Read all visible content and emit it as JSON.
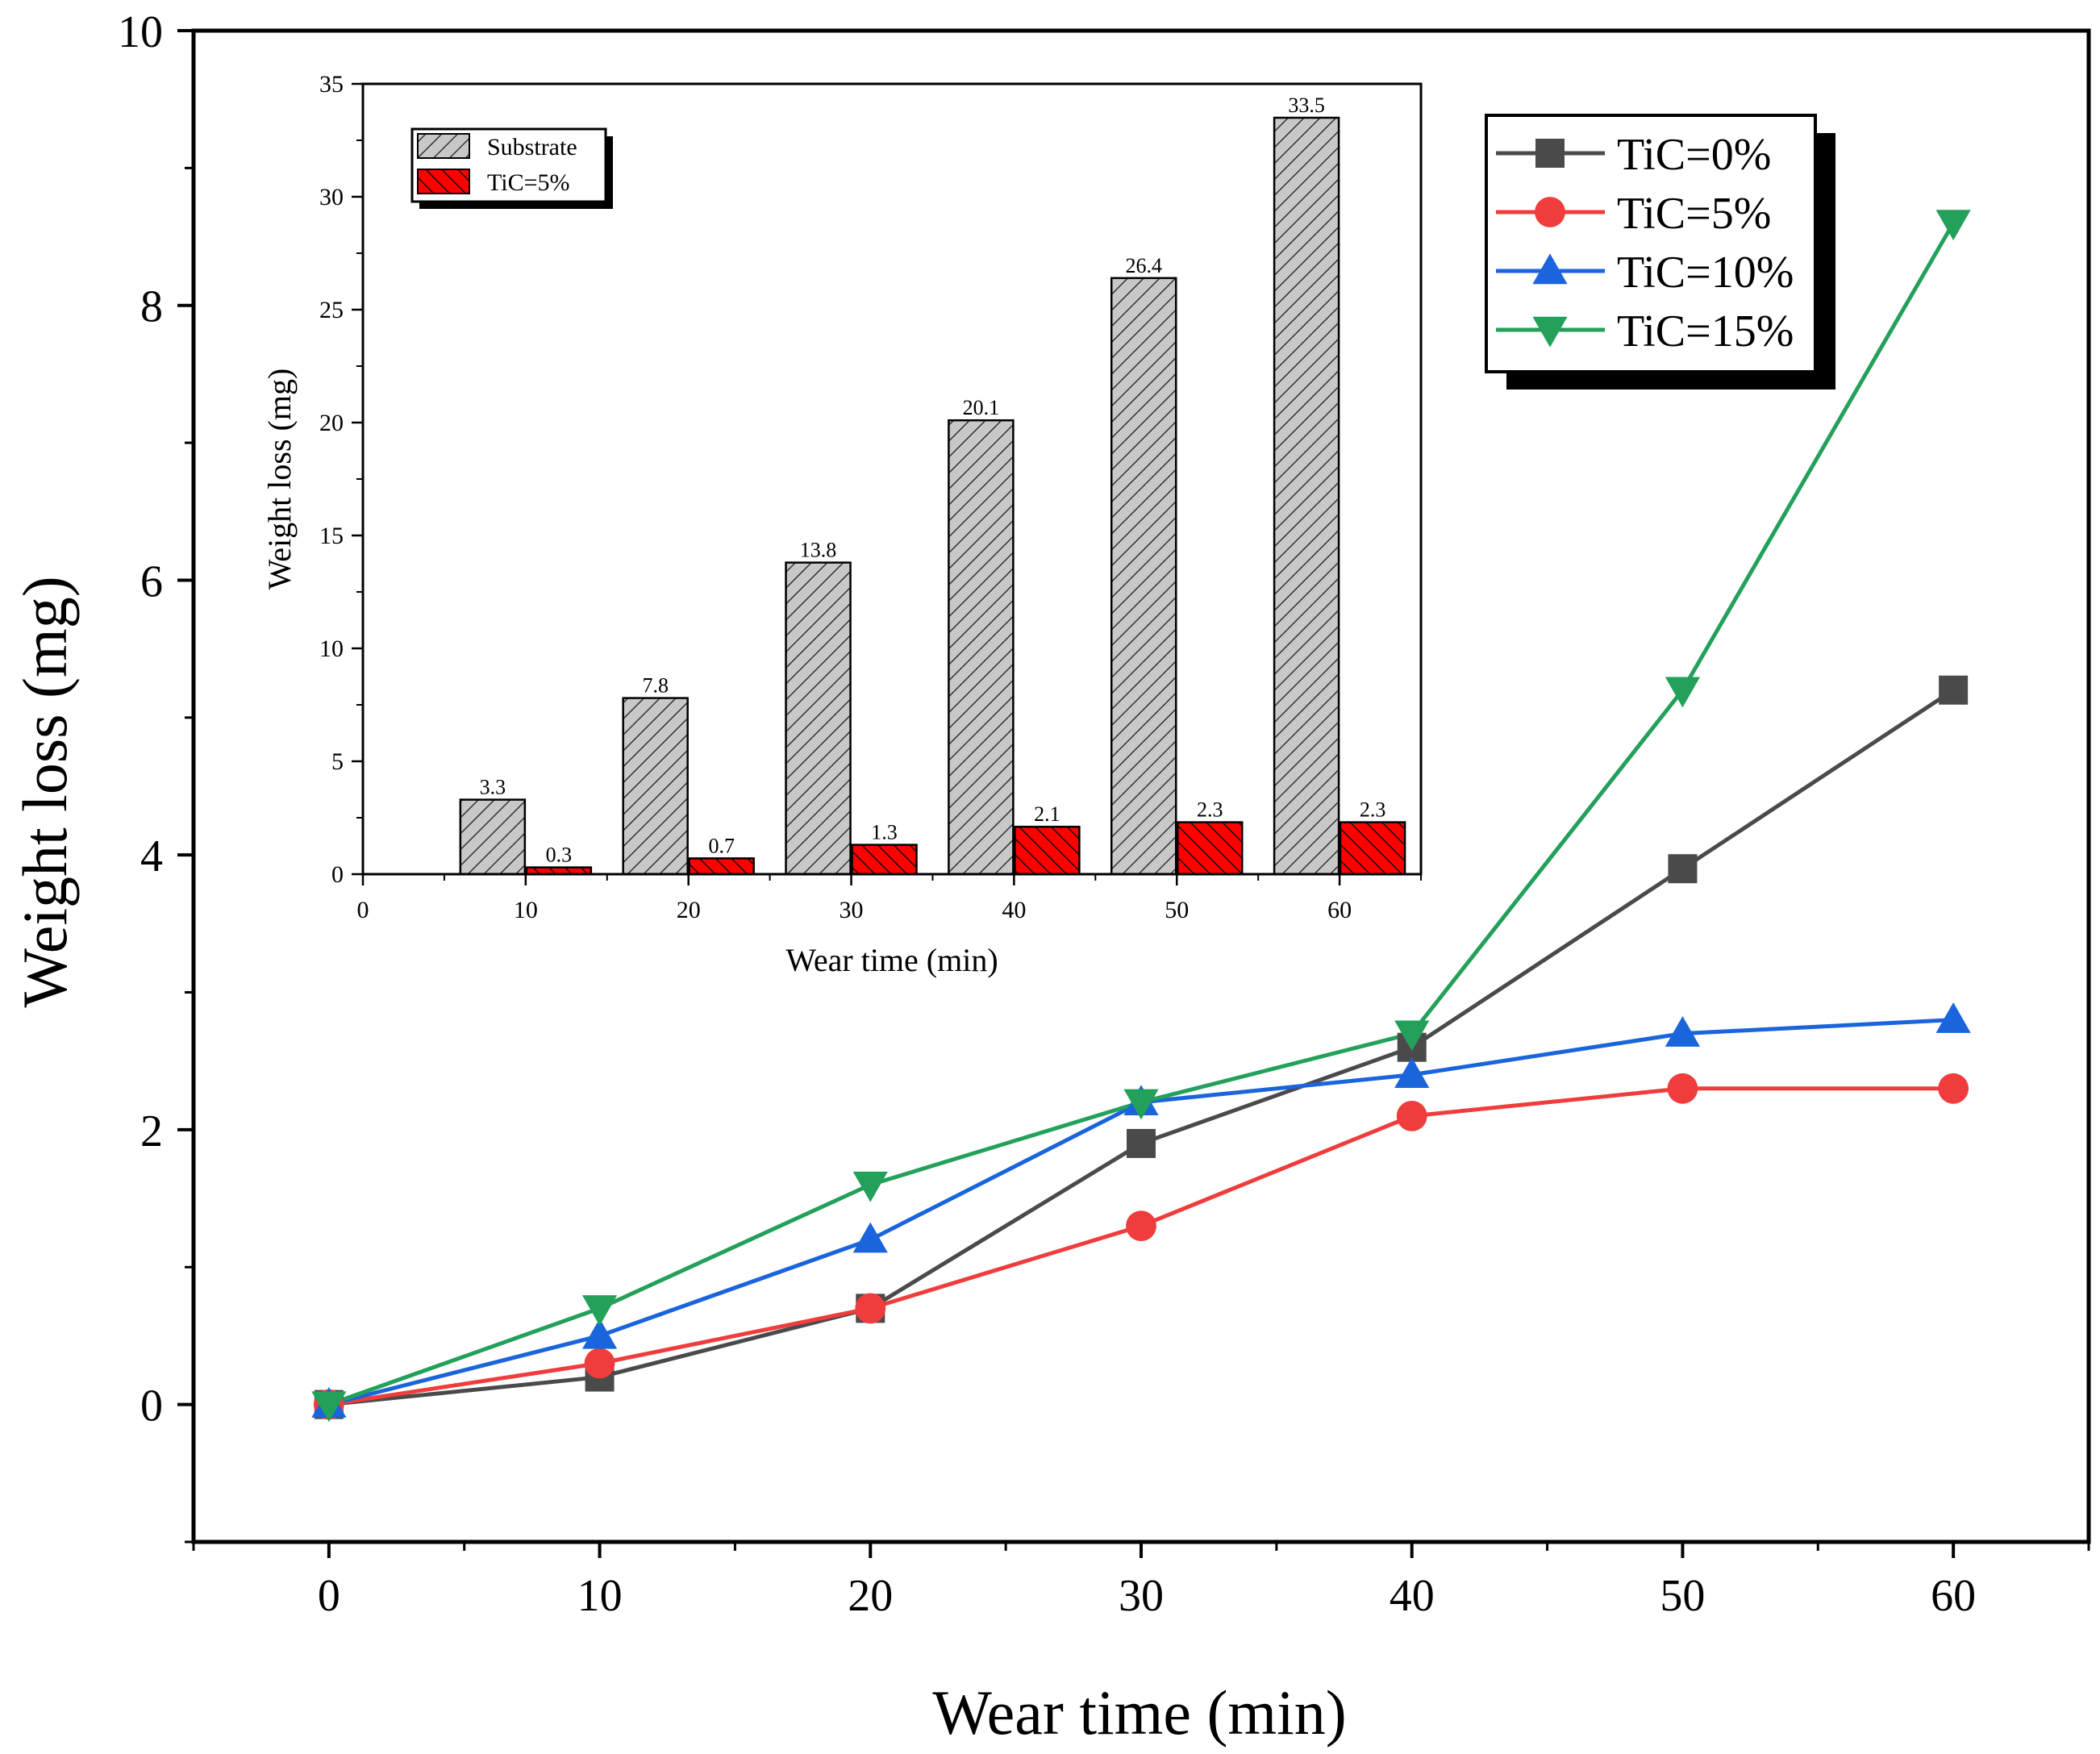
{
  "chart_data": [
    {
      "id": "main",
      "type": "line",
      "xlabel": "Wear time (min)",
      "ylabel": "Weight loss (mg)",
      "xlim": [
        -5,
        65
      ],
      "ylim": [
        -1,
        10
      ],
      "xticks": [
        0,
        10,
        20,
        30,
        40,
        50,
        60
      ],
      "yticks": [
        0,
        2,
        4,
        6,
        8,
        10
      ],
      "x": [
        0,
        10,
        20,
        30,
        40,
        50,
        60
      ],
      "legend_position": "top-right",
      "series": [
        {
          "name": "TiC=0%",
          "marker": "square",
          "color": "#4a4a4a",
          "values": [
            0,
            0.2,
            0.7,
            1.9,
            2.6,
            3.9,
            5.2
          ]
        },
        {
          "name": "TiC=5%",
          "marker": "circle",
          "color": "#f03c3c",
          "values": [
            0,
            0.3,
            0.7,
            1.3,
            2.1,
            2.3,
            2.3
          ]
        },
        {
          "name": "TiC=10%",
          "marker": "triangle-up",
          "color": "#1a64dc",
          "values": [
            0,
            0.5,
            1.2,
            2.2,
            2.4,
            2.7,
            2.8
          ]
        },
        {
          "name": "TiC=15%",
          "marker": "triangle-down",
          "color": "#23a05a",
          "values": [
            0,
            0.7,
            1.6,
            2.2,
            2.7,
            5.2,
            8.6
          ]
        }
      ]
    },
    {
      "id": "inset",
      "type": "bar",
      "xlabel": "Wear time (min)",
      "ylabel": "Weight loss (mg)",
      "xlim": [
        0,
        65
      ],
      "ylim": [
        0,
        35
      ],
      "xticks": [
        0,
        10,
        20,
        30,
        40,
        50,
        60
      ],
      "yticks": [
        0,
        5,
        10,
        15,
        20,
        25,
        30,
        35
      ],
      "categories": [
        10,
        20,
        30,
        40,
        50,
        60
      ],
      "legend_position": "top-left",
      "series": [
        {
          "name": "Substrate",
          "color": "#c8c8c8",
          "hatch": "diagonal",
          "values": [
            3.3,
            7.8,
            13.8,
            20.1,
            26.4,
            33.5
          ],
          "labels": [
            "3.3",
            "7.8",
            "13.8",
            "20.1",
            "26.4",
            "33.5"
          ]
        },
        {
          "name": "TiC=5%",
          "color": "#ff0000",
          "hatch": "back-diagonal",
          "values": [
            0.3,
            0.7,
            1.3,
            2.1,
            2.3,
            2.3
          ],
          "labels": [
            "0.3",
            "0.7",
            "1.3",
            "2.1",
            "2.3",
            "2.3"
          ]
        }
      ]
    }
  ]
}
